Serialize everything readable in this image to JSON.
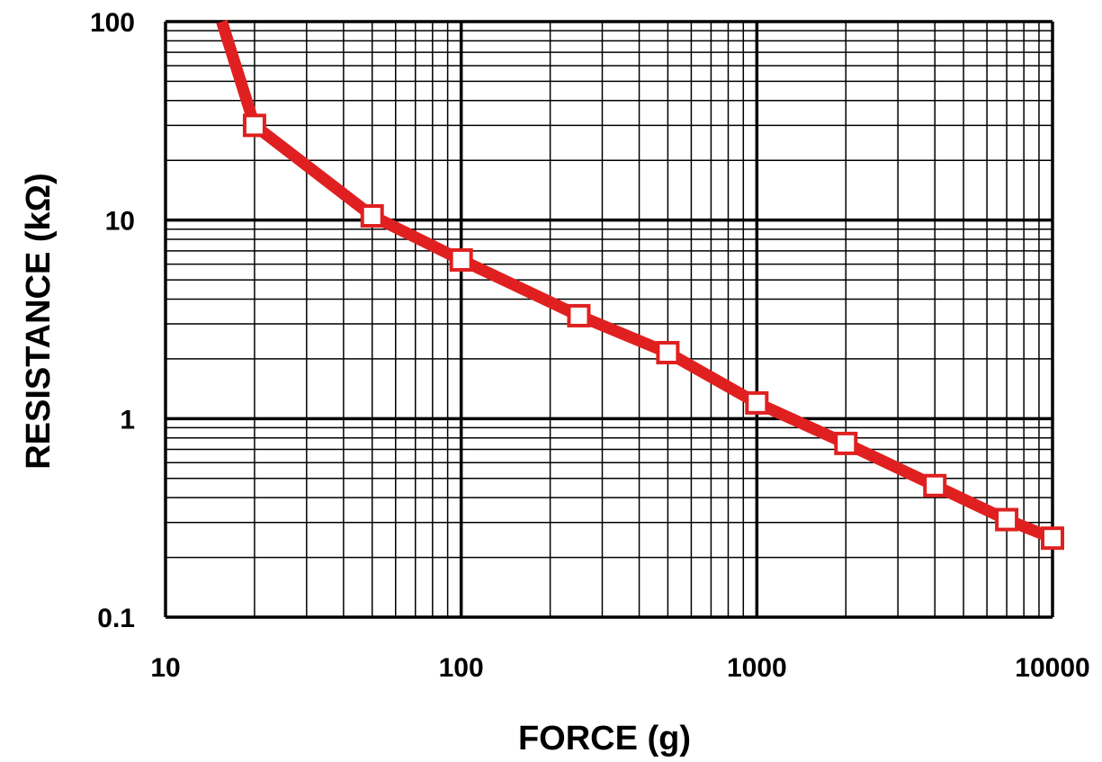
{
  "chart_data": {
    "type": "line",
    "title": "",
    "xlabel": "FORCE (g)",
    "ylabel": "RESISTANCE (kΩ)",
    "xscale": "log",
    "yscale": "log",
    "xlim": [
      10,
      10000
    ],
    "ylim": [
      0.1,
      100
    ],
    "grid": true,
    "legend": "none",
    "x_ticks": [
      "10",
      "100",
      "1000",
      "10000"
    ],
    "y_ticks": [
      "0.1",
      "1",
      "10",
      "100"
    ],
    "series": [
      {
        "color": "#e02020",
        "marker": "square",
        "line_start": {
          "x": 15.5,
          "y": 100
        },
        "points": [
          {
            "x": 20,
            "y": 30
          },
          {
            "x": 50,
            "y": 10.5
          },
          {
            "x": 100,
            "y": 6.3
          },
          {
            "x": 250,
            "y": 3.3
          },
          {
            "x": 500,
            "y": 2.15
          },
          {
            "x": 1000,
            "y": 1.2
          },
          {
            "x": 2000,
            "y": 0.75
          },
          {
            "x": 4000,
            "y": 0.46
          },
          {
            "x": 7000,
            "y": 0.31
          },
          {
            "x": 10000,
            "y": 0.25
          }
        ]
      }
    ]
  }
}
